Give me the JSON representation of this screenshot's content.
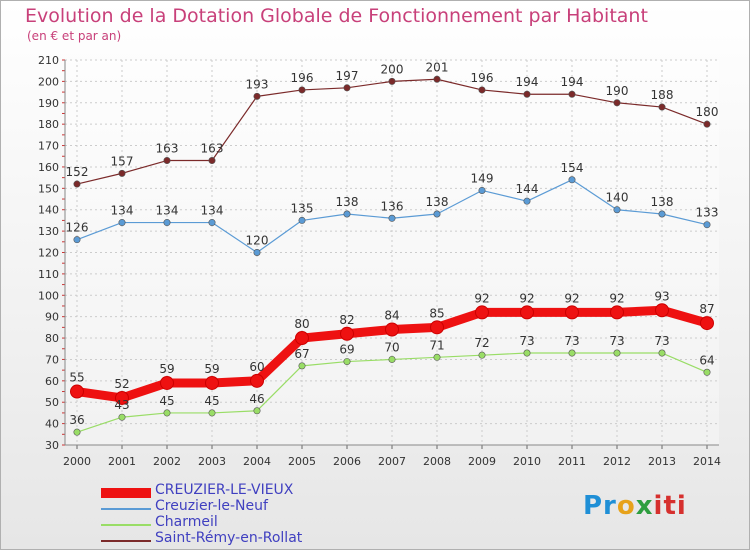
{
  "title": "Evolution de la Dotation Globale de Fonctionnement par Habitant",
  "subtitle": "(en € et par an)",
  "logo": [
    "Pr",
    "o",
    "x",
    "iti"
  ],
  "colors": {
    "title": "#c8407a",
    "axis_text": "#333333",
    "legend_text": "#4040c0"
  },
  "chart_data": {
    "type": "line",
    "title": "Evolution de la Dotation Globale de Fonctionnement par Habitant",
    "ylabel": "(en € et par an)",
    "xlabel": "",
    "categories": [
      "2000",
      "2001",
      "2002",
      "2003",
      "2004",
      "2005",
      "2006",
      "2007",
      "2008",
      "2009",
      "2010",
      "2011",
      "2012",
      "2013",
      "2014"
    ],
    "ylim": [
      30,
      210
    ],
    "yticks": [
      30,
      40,
      50,
      60,
      70,
      80,
      90,
      100,
      110,
      120,
      130,
      140,
      150,
      160,
      170,
      180,
      190,
      200,
      210
    ],
    "grid": true,
    "legend_position": "bottom-left",
    "series": [
      {
        "name": "CREUZIER-LE-VIEUX",
        "color": "#ee1111",
        "values": [
          55,
          52,
          59,
          59,
          60,
          80,
          82,
          84,
          85,
          92,
          92,
          92,
          92,
          93,
          87
        ]
      },
      {
        "name": "Creuzier-le-Neuf",
        "color": "#5b9bd5",
        "values": [
          126,
          134,
          134,
          134,
          120,
          135,
          138,
          136,
          138,
          149,
          144,
          154,
          140,
          138,
          133
        ]
      },
      {
        "name": "Charmeil",
        "color": "#99dd66",
        "values": [
          36,
          43,
          45,
          45,
          46,
          67,
          69,
          70,
          71,
          72,
          73,
          73,
          73,
          73,
          64
        ]
      },
      {
        "name": "Saint-Rémy-en-Rollat",
        "color": "#7b2a2a",
        "values": [
          152,
          157,
          163,
          163,
          193,
          196,
          197,
          200,
          201,
          196,
          194,
          194,
          190,
          188,
          180
        ]
      }
    ]
  }
}
